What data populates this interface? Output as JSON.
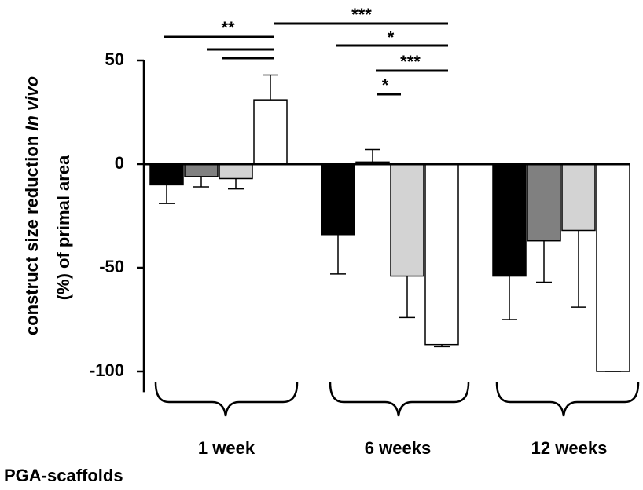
{
  "chart_data": {
    "type": "bar",
    "ylabel": [
      "construct size reduction",
      "In vivo",
      "(%) of primal area"
    ],
    "categories": [
      "1 week",
      "6 weeks",
      "12 weeks"
    ],
    "group_label": "PGA-scaffolds",
    "series": [
      {
        "color": "#000000",
        "values": [
          -10,
          -34,
          -54
        ],
        "errors": [
          9,
          19,
          21
        ]
      },
      {
        "color": "#808080",
        "values": [
          -6,
          1,
          -37
        ],
        "errors": [
          5,
          6,
          20
        ]
      },
      {
        "color": "#d3d3d3",
        "values": [
          -7,
          -54,
          -32
        ],
        "errors": [
          5,
          20,
          37
        ]
      },
      {
        "color": "#ffffff",
        "values": [
          31,
          -87,
          -100
        ],
        "errors": [
          12,
          1,
          0
        ]
      }
    ],
    "significance": [
      "**",
      "***",
      "*",
      "***",
      "*"
    ],
    "ylim": [
      -110,
      50
    ],
    "yticks": [
      -100,
      -50,
      0,
      50
    ]
  }
}
